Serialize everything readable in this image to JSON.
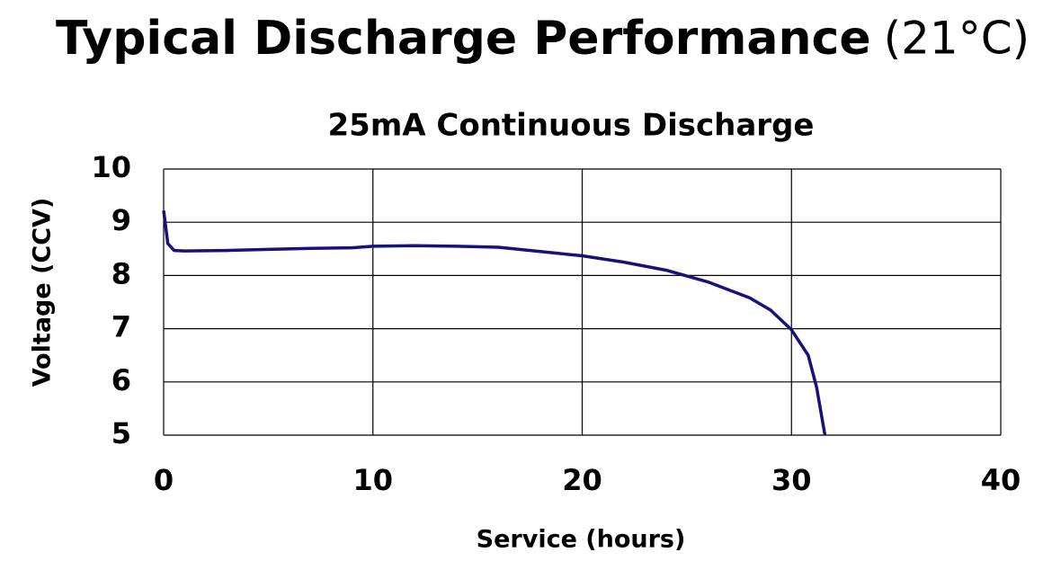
{
  "chart_data": {
    "type": "line",
    "title": "Typical Discharge Performance",
    "title_condition": "(21°C)",
    "subtitle": "25mA Continuous Discharge",
    "x_label": "Service (hours)",
    "y_label": "Voltage (CCV)",
    "xlim": [
      0,
      40
    ],
    "xticks": [
      0,
      10,
      20,
      30,
      40
    ],
    "ylim": [
      5,
      10
    ],
    "yticks": [
      5,
      6,
      7,
      8,
      9,
      10
    ],
    "grid": true,
    "x": [
      0,
      0.2,
      0.5,
      1,
      3,
      5,
      7,
      9,
      10,
      12,
      14,
      16,
      18,
      20,
      22,
      24,
      26,
      28,
      29,
      30,
      30.8,
      31.2,
      31.6
    ],
    "series": [
      {
        "name": "25mA",
        "color": "#15127a",
        "values": [
          9.22,
          8.6,
          8.47,
          8.46,
          8.47,
          8.49,
          8.51,
          8.52,
          8.55,
          8.56,
          8.55,
          8.53,
          8.45,
          8.37,
          8.25,
          8.1,
          7.88,
          7.58,
          7.35,
          6.98,
          6.5,
          5.9,
          5.0
        ]
      }
    ]
  }
}
